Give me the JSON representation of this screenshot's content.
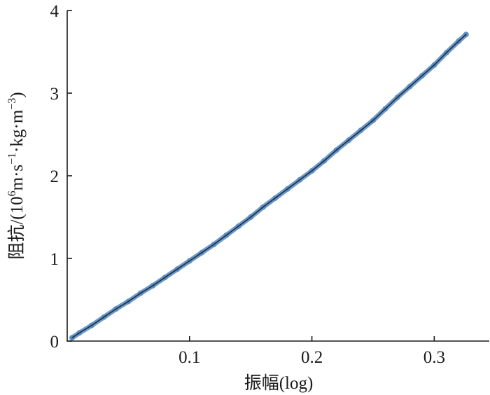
{
  "chart_data": {
    "type": "line",
    "title": "",
    "xlabel": "振幅(log)",
    "ylabel_parts": {
      "prefix": "阻抗/(10",
      "sup1": "6",
      "mid1": "m·s",
      "sup2": "−1",
      "mid2": "·kg·m",
      "sup3": "−3",
      "suffix": ")"
    },
    "xlim": [
      0.0,
      0.345
    ],
    "ylim": [
      0,
      4
    ],
    "x_ticks": [
      {
        "value": 0.1,
        "label": "0.1"
      },
      {
        "value": 0.2,
        "label": "0.2"
      },
      {
        "value": 0.3,
        "label": "0.3"
      }
    ],
    "y_ticks": [
      {
        "value": 0,
        "label": "0"
      },
      {
        "value": 1,
        "label": "1"
      },
      {
        "value": 2,
        "label": "2"
      },
      {
        "value": 3,
        "label": "3"
      },
      {
        "value": 4,
        "label": "4"
      }
    ],
    "grid": false,
    "series": [
      {
        "kind": "measured",
        "color": "#5b8fc7",
        "x": [
          0.004,
          0.01,
          0.02,
          0.03,
          0.04,
          0.05,
          0.06,
          0.07,
          0.08,
          0.09,
          0.1,
          0.11,
          0.12,
          0.13,
          0.14,
          0.15,
          0.16,
          0.17,
          0.18,
          0.19,
          0.2,
          0.21,
          0.22,
          0.23,
          0.24,
          0.25,
          0.26,
          0.27,
          0.28,
          0.29,
          0.3,
          0.31,
          0.32,
          0.326
        ],
        "y": [
          0.04,
          0.1,
          0.19,
          0.29,
          0.39,
          0.48,
          0.58,
          0.67,
          0.77,
          0.87,
          0.97,
          1.07,
          1.17,
          1.28,
          1.39,
          1.5,
          1.62,
          1.73,
          1.84,
          1.95,
          2.06,
          2.18,
          2.31,
          2.43,
          2.55,
          2.67,
          2.81,
          2.95,
          3.08,
          3.21,
          3.34,
          3.49,
          3.63,
          3.71
        ]
      },
      {
        "kind": "fit",
        "color": "#1f2a36",
        "x": [
          0.004,
          0.01,
          0.02,
          0.03,
          0.04,
          0.05,
          0.06,
          0.07,
          0.08,
          0.09,
          0.1,
          0.11,
          0.12,
          0.13,
          0.14,
          0.15,
          0.16,
          0.17,
          0.18,
          0.19,
          0.2,
          0.21,
          0.22,
          0.23,
          0.24,
          0.25,
          0.26,
          0.27,
          0.28,
          0.29,
          0.3,
          0.31,
          0.32,
          0.326
        ],
        "y": [
          0.04,
          0.1,
          0.19,
          0.29,
          0.39,
          0.48,
          0.58,
          0.67,
          0.77,
          0.87,
          0.97,
          1.07,
          1.17,
          1.28,
          1.39,
          1.5,
          1.62,
          1.73,
          1.84,
          1.95,
          2.06,
          2.18,
          2.31,
          2.43,
          2.55,
          2.67,
          2.81,
          2.95,
          3.08,
          3.21,
          3.34,
          3.49,
          3.63,
          3.71
        ]
      }
    ]
  }
}
